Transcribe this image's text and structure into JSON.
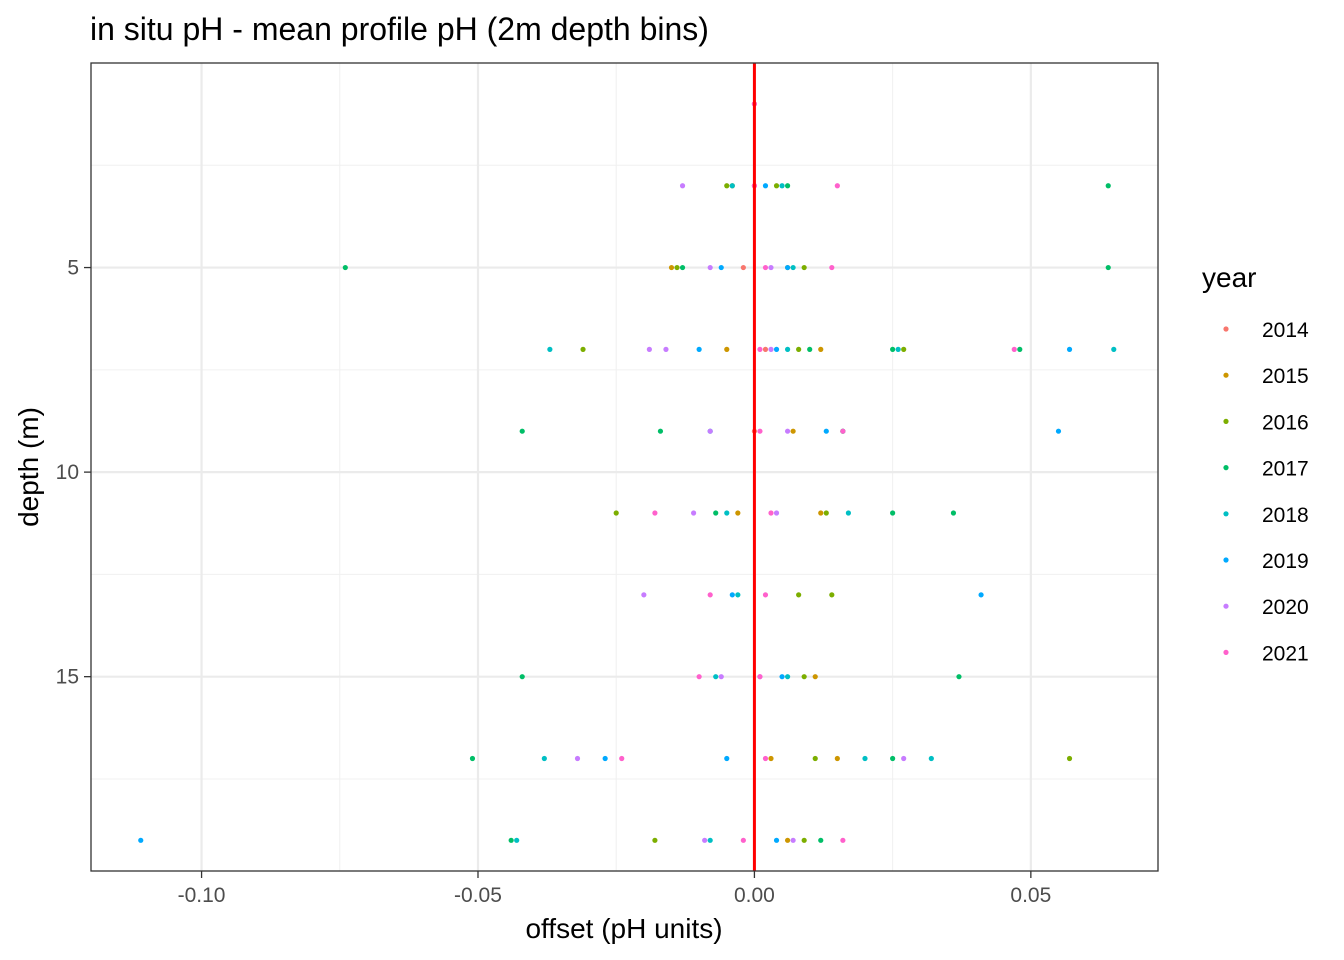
{
  "chart_data": {
    "type": "scatter",
    "title": "in situ pH - mean profile pH (2m depth bins)",
    "xlabel": "offset (pH units)",
    "ylabel": "depth (m)",
    "xlim": [
      -0.12,
      0.073
    ],
    "ylim": [
      0,
      19.75
    ],
    "y_reversed": true,
    "x_ticks": [
      -0.1,
      -0.05,
      0.0,
      0.05
    ],
    "x_tick_labels": [
      "-0.10",
      "-0.05",
      "0.00",
      "0.05"
    ],
    "y_ticks": [
      5,
      10,
      15
    ],
    "y_tick_labels": [
      "5",
      "10",
      "15"
    ],
    "grid": true,
    "reference_line": {
      "x": 0,
      "color": "#ff0000"
    },
    "legend": {
      "title": "year",
      "position": "right",
      "entries": [
        "2014",
        "2015",
        "2016",
        "2017",
        "2018",
        "2019",
        "2020",
        "2021"
      ]
    },
    "colors": {
      "2014": "#f8766d",
      "2015": "#cd9600",
      "2016": "#7cae00",
      "2017": "#00be67",
      "2018": "#00bfc4",
      "2019": "#00a9ff",
      "2020": "#c77cff",
      "2021": "#ff61cc"
    },
    "series": [
      {
        "name": "2014",
        "points": [
          [
            0.0,
            1
          ],
          [
            0.0,
            3
          ],
          [
            -0.002,
            5
          ],
          [
            0.002,
            7
          ],
          [
            0.0,
            9
          ]
        ]
      },
      {
        "name": "2015",
        "points": [
          [
            -0.004,
            3
          ],
          [
            -0.015,
            5
          ],
          [
            0.006,
            5
          ],
          [
            0.012,
            7
          ],
          [
            -0.005,
            7
          ],
          [
            0.007,
            9
          ],
          [
            0.012,
            11
          ],
          [
            -0.003,
            11
          ],
          [
            0.011,
            15
          ],
          [
            0.015,
            17
          ],
          [
            0.003,
            17
          ],
          [
            0.006,
            19
          ]
        ]
      },
      {
        "name": "2016",
        "points": [
          [
            -0.005,
            3
          ],
          [
            0.004,
            3
          ],
          [
            -0.014,
            5
          ],
          [
            0.009,
            5
          ],
          [
            -0.031,
            7
          ],
          [
            0.027,
            7
          ],
          [
            0.008,
            7
          ],
          [
            0.016,
            9
          ],
          [
            -0.025,
            11
          ],
          [
            0.013,
            11
          ],
          [
            0.014,
            13
          ],
          [
            0.008,
            13
          ],
          [
            0.009,
            15
          ],
          [
            0.057,
            17
          ],
          [
            0.011,
            17
          ],
          [
            -0.018,
            19
          ],
          [
            0.009,
            19
          ]
        ]
      },
      {
        "name": "2017",
        "points": [
          [
            0.064,
            3
          ],
          [
            0.006,
            3
          ],
          [
            -0.074,
            5
          ],
          [
            0.064,
            5
          ],
          [
            -0.013,
            5
          ],
          [
            0.048,
            7
          ],
          [
            0.01,
            7
          ],
          [
            0.025,
            7
          ],
          [
            -0.042,
            9
          ],
          [
            -0.017,
            9
          ],
          [
            0.025,
            11
          ],
          [
            0.036,
            11
          ],
          [
            -0.007,
            11
          ],
          [
            0.037,
            15
          ],
          [
            -0.042,
            15
          ],
          [
            -0.051,
            17
          ],
          [
            0.025,
            17
          ],
          [
            -0.044,
            19
          ],
          [
            0.012,
            19
          ]
        ]
      },
      {
        "name": "2018",
        "points": [
          [
            0.005,
            3
          ],
          [
            -0.004,
            3
          ],
          [
            0.007,
            5
          ],
          [
            -0.037,
            7
          ],
          [
            0.065,
            7
          ],
          [
            0.026,
            7
          ],
          [
            0.006,
            7
          ],
          [
            -0.008,
            9
          ],
          [
            0.016,
            9
          ],
          [
            -0.005,
            11
          ],
          [
            0.017,
            11
          ],
          [
            -0.003,
            13
          ],
          [
            -0.007,
            15
          ],
          [
            0.006,
            15
          ],
          [
            -0.038,
            17
          ],
          [
            0.032,
            17
          ],
          [
            0.02,
            17
          ],
          [
            -0.043,
            19
          ],
          [
            -0.008,
            19
          ]
        ]
      },
      {
        "name": "2019",
        "points": [
          [
            0.002,
            3
          ],
          [
            -0.006,
            5
          ],
          [
            0.006,
            5
          ],
          [
            0.057,
            7
          ],
          [
            -0.01,
            7
          ],
          [
            0.004,
            7
          ],
          [
            0.055,
            9
          ],
          [
            0.013,
            9
          ],
          [
            0.041,
            13
          ],
          [
            -0.004,
            13
          ],
          [
            0.005,
            15
          ],
          [
            -0.027,
            17
          ],
          [
            -0.005,
            17
          ],
          [
            -0.111,
            19
          ],
          [
            0.004,
            19
          ]
        ]
      },
      {
        "name": "2020",
        "points": [
          [
            -0.013,
            3
          ],
          [
            -0.008,
            5
          ],
          [
            0.003,
            5
          ],
          [
            -0.019,
            7
          ],
          [
            -0.016,
            7
          ],
          [
            0.003,
            7
          ],
          [
            -0.008,
            9
          ],
          [
            0.006,
            9
          ],
          [
            -0.011,
            11
          ],
          [
            0.004,
            11
          ],
          [
            -0.02,
            13
          ],
          [
            -0.006,
            15
          ],
          [
            0.001,
            15
          ],
          [
            -0.032,
            17
          ],
          [
            0.027,
            17
          ],
          [
            -0.009,
            19
          ],
          [
            0.007,
            19
          ]
        ]
      },
      {
        "name": "2021",
        "points": [
          [
            0.0,
            1
          ],
          [
            0.015,
            3
          ],
          [
            0.0,
            3
          ],
          [
            0.014,
            5
          ],
          [
            0.002,
            5
          ],
          [
            0.047,
            7
          ],
          [
            0.001,
            7
          ],
          [
            0.016,
            9
          ],
          [
            0.001,
            9
          ],
          [
            -0.018,
            11
          ],
          [
            0.003,
            11
          ],
          [
            -0.008,
            13
          ],
          [
            0.002,
            13
          ],
          [
            -0.01,
            15
          ],
          [
            0.001,
            15
          ],
          [
            -0.024,
            17
          ],
          [
            0.002,
            17
          ],
          [
            0.016,
            19
          ],
          [
            -0.002,
            19
          ]
        ]
      }
    ]
  }
}
